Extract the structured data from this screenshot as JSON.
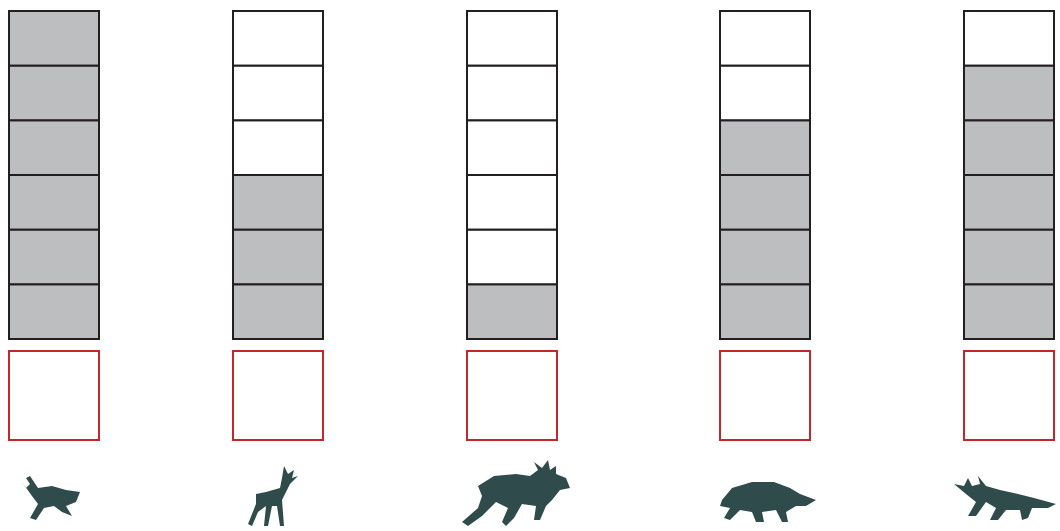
{
  "chart_data": {
    "type": "bar",
    "categories": [
      null,
      null,
      null,
      null,
      null
    ],
    "values": [
      6,
      3,
      1,
      4,
      5
    ],
    "ylim": [
      0,
      6
    ],
    "color": "#bcbec0"
  }
}
